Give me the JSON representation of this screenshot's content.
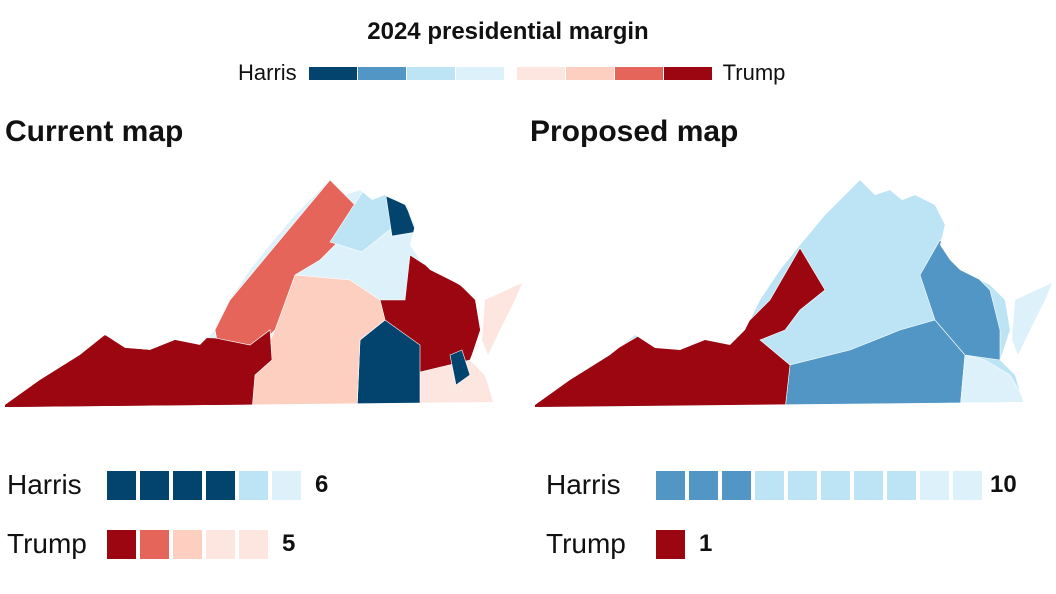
{
  "title": "2024 presidential margin",
  "legend": {
    "left_label": "Harris",
    "right_label": "Trump",
    "harris_colors": [
      "#03446f",
      "#5296c6",
      "#bde4f4",
      "#ddf1fa"
    ],
    "trump_colors": [
      "#fde6e0",
      "#fdcfc0",
      "#e6655a",
      "#9b0610"
    ]
  },
  "maps": [
    {
      "title": "Current map",
      "harris": {
        "label": "Harris",
        "count": "6",
        "boxes": [
          "#03446f",
          "#03446f",
          "#03446f",
          "#03446f",
          "#bde4f4",
          "#ddf1fa"
        ]
      },
      "trump": {
        "label": "Trump",
        "count": "5",
        "boxes": [
          "#9b0610",
          "#e6655a",
          "#fdcfc0",
          "#fde6e0",
          "#fde6e0"
        ]
      }
    },
    {
      "title": "Proposed map",
      "harris": {
        "label": "Harris",
        "count": "10",
        "boxes": [
          "#5296c6",
          "#5296c6",
          "#5296c6",
          "#bde4f4",
          "#bde4f4",
          "#bde4f4",
          "#bde4f4",
          "#bde4f4",
          "#ddf1fa",
          "#ddf1fa"
        ]
      },
      "trump": {
        "label": "Trump",
        "count": "1",
        "boxes": [
          "#9b0610"
        ]
      }
    }
  ]
}
